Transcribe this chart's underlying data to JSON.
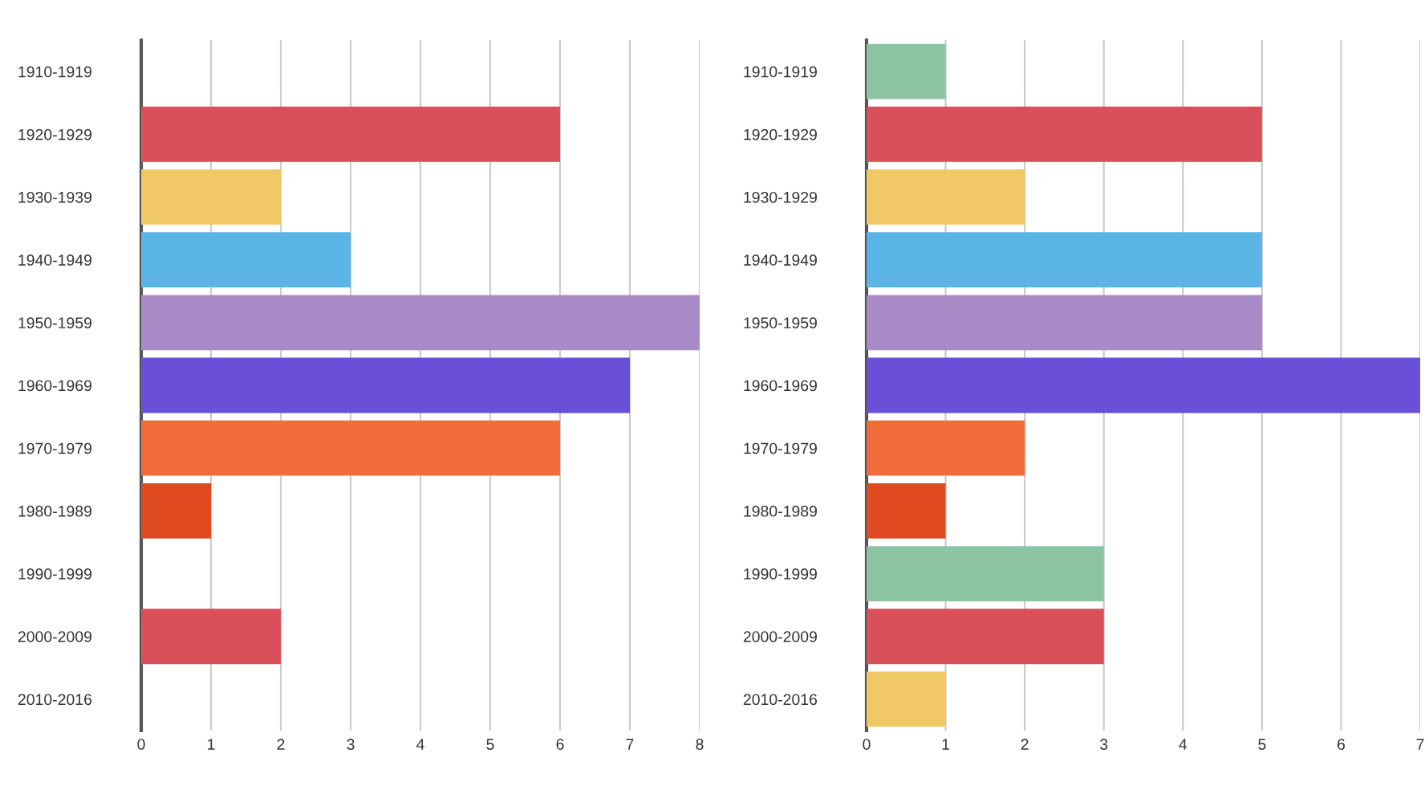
{
  "chart_data": [
    {
      "type": "bar",
      "orientation": "horizontal",
      "categories": [
        "1910-1919",
        "1920-1929",
        "1930-1939",
        "1940-1949",
        "1950-1959",
        "1960-1969",
        "1970-1979",
        "1980-1989",
        "1990-1999",
        "2000-2009",
        "2010-2016"
      ],
      "values": [
        0,
        6,
        2,
        3,
        8,
        7,
        6,
        1,
        0,
        2,
        0
      ],
      "colors": [
        "#8cc4a4",
        "#d9505a",
        "#f0c866",
        "#5ab4e6",
        "#a98bc8",
        "#6a4fd8",
        "#f26b3a",
        "#e04a20",
        "#8cc4a4",
        "#d9505a",
        "#f0c866"
      ],
      "xlim": [
        0,
        8
      ],
      "xticks": [
        0,
        1,
        2,
        3,
        4,
        5,
        6,
        7,
        8
      ],
      "grid": "x"
    },
    {
      "type": "bar",
      "orientation": "horizontal",
      "categories": [
        "1910-1919",
        "1920-1929",
        "1930-1929",
        "1940-1949",
        "1950-1959",
        "1960-1969",
        "1970-1979",
        "1980-1989",
        "1990-1999",
        "2000-2009",
        "2010-2016"
      ],
      "values": [
        1,
        5,
        2,
        5,
        5,
        7,
        2,
        1,
        3,
        3,
        1
      ],
      "colors": [
        "#8cc4a4",
        "#d9505a",
        "#f0c866",
        "#5ab4e6",
        "#a98bc8",
        "#6a4fd8",
        "#f26b3a",
        "#e04a20",
        "#8cc4a4",
        "#d9505a",
        "#f0c866"
      ],
      "xlim": [
        0,
        7
      ],
      "xticks": [
        0,
        1,
        2,
        3,
        4,
        5,
        6,
        7
      ],
      "grid": "x"
    }
  ]
}
